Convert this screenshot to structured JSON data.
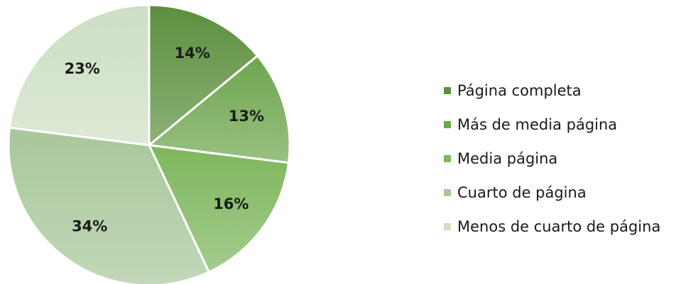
{
  "chart_data": {
    "type": "pie",
    "categories": [
      "Página completa",
      "Más de media página",
      "Media página",
      "Cuarto de página",
      "Menos de cuarto de página"
    ],
    "values": [
      14,
      13,
      16,
      34,
      23
    ],
    "value_labels": [
      "14%",
      "13%",
      "16%",
      "34%",
      "23%"
    ],
    "colors": [
      "#5b8f3d",
      "#6ea54e",
      "#7db65c",
      "#a8c79a",
      "#cddfc4"
    ],
    "legend": "right"
  }
}
